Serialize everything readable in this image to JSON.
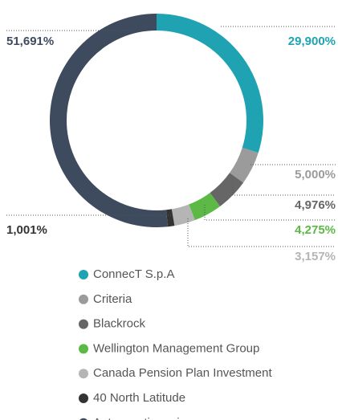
{
  "chart_data": {
    "type": "donut",
    "categories": [
      "ConnecT S.p.A",
      "Criteria",
      "Blackrock",
      "Wellington Management Group",
      "Canada Pension Plan Investment",
      "40 North Latitude",
      "Autres actionnaires"
    ],
    "values": [
      29.9,
      5.0,
      4.976,
      4.275,
      3.157,
      1.001,
      51.691
    ],
    "value_labels": [
      "29,900%",
      "5,000%",
      "4,976%",
      "4,275%",
      "3,157%",
      "1,001%",
      "51,691%"
    ],
    "colors": [
      "#1fa3b3",
      "#9b9b9b",
      "#666666",
      "#5cb946",
      "#b5b5b5",
      "#333333",
      "#3e4b5e"
    ],
    "legend": "bottom"
  }
}
